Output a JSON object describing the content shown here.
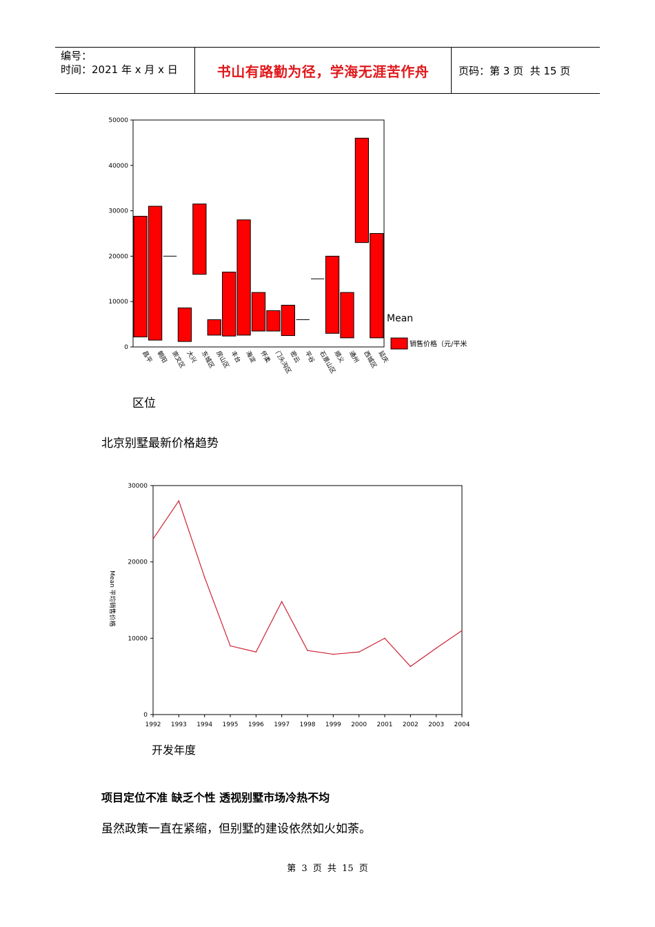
{
  "header": {
    "number_label": "编号：",
    "time_label": "时间：2021 年 x 月 x 日",
    "motto": "书山有路勤为径，学海无涯苦作舟",
    "page_label": "页码：第 3 页  共 15 页"
  },
  "chart1_xlabel": "区位",
  "section_title": "北京别墅最新价格趋势",
  "chart2_xlabel": "开发年度",
  "heading": "项目定位不准 缺乏个性 透视别墅市场冷热不均",
  "paragraph": "虽然政策一直在紧缩，但别墅的建设依然如火如荼。",
  "footer": "第 3 页 共 15 页",
  "colors": {
    "motto": "#e0181b",
    "bar_fill": "#ff0000",
    "line": "#cc2233"
  },
  "chart_data": [
    {
      "type": "bar",
      "subtype": "high-low-range",
      "categories": [
        "昌平",
        "朝阳",
        "崇文区",
        "大兴",
        "东城区",
        "房山区",
        "丰台",
        "海淀",
        "怀柔",
        "门头沟区",
        "密云",
        "平谷",
        "石景山区",
        "顺义",
        "通州",
        "西城区",
        "延庆"
      ],
      "series": [
        {
          "name": "销售价格（元/平米",
          "low": [
            2200,
            1500,
            null,
            1200,
            16000,
            2600,
            2400,
            2600,
            3500,
            3500,
            2500,
            null,
            null,
            3000,
            2000,
            23000,
            2000
          ],
          "high": [
            28800,
            31000,
            null,
            8600,
            31500,
            6000,
            16500,
            28000,
            12000,
            8000,
            9200,
            null,
            null,
            20000,
            12000,
            46000,
            25000
          ]
        }
      ],
      "mean_markers": [
        {
          "category": "崇文区",
          "value": 20000
        },
        {
          "category": "平谷",
          "value": 6000
        },
        {
          "category": "石景山区",
          "value": 15000
        }
      ],
      "legend_title": "Mean",
      "legend_placement": "right",
      "xlabel": "区位",
      "ylabel": "",
      "ylim": [
        0,
        50000
      ],
      "yticks": [
        "0",
        "10000",
        "20000",
        "30000",
        "40000",
        "50000"
      ]
    },
    {
      "type": "line",
      "x": [
        "1992",
        "1993",
        "1994",
        "1995",
        "1996",
        "1997",
        "1998",
        "1999",
        "2000",
        "2001",
        "2002",
        "2003",
        "2004"
      ],
      "series": [
        {
          "name": "",
          "values": [
            23000,
            28000,
            18000,
            9000,
            8200,
            14800,
            8400,
            7900,
            8200,
            10000,
            6300,
            8700,
            11000
          ]
        }
      ],
      "xlabel": "开发年度",
      "ylabel": "Mean 平均销售价格",
      "ylim": [
        0,
        30000
      ],
      "yticks": [
        "0",
        "10000",
        "20000",
        "30000"
      ]
    }
  ]
}
